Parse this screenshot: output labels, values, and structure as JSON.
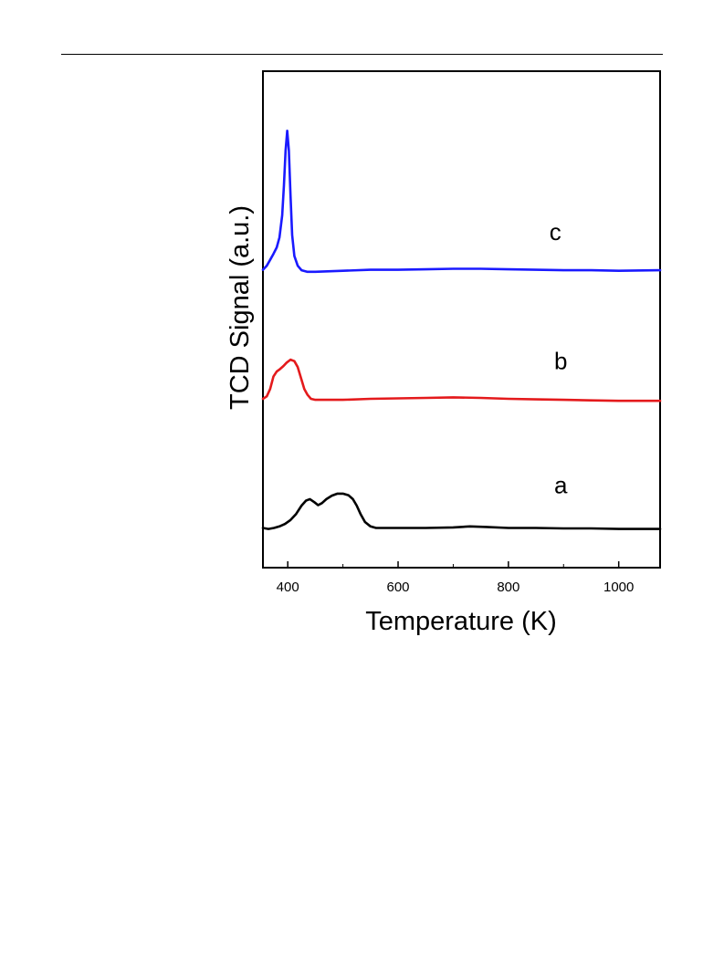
{
  "chart_data": {
    "type": "line",
    "title": "",
    "xlabel": "Temperature (K)",
    "ylabel": "TCD Signal (a.u.)",
    "xlim": [
      355,
      1075
    ],
    "ylim": [
      0,
      100
    ],
    "x_ticks": [
      400,
      600,
      800,
      1000
    ],
    "y_ticks": [],
    "grid": false,
    "legend": "none",
    "series": [
      {
        "name": "a",
        "color": "#000000",
        "points": [
          [
            355,
            8.0
          ],
          [
            365,
            7.8
          ],
          [
            375,
            8.0
          ],
          [
            385,
            8.3
          ],
          [
            395,
            8.8
          ],
          [
            405,
            9.6
          ],
          [
            415,
            10.8
          ],
          [
            425,
            12.5
          ],
          [
            433,
            13.5
          ],
          [
            440,
            13.8
          ],
          [
            448,
            13.2
          ],
          [
            455,
            12.6
          ],
          [
            462,
            13.0
          ],
          [
            470,
            13.8
          ],
          [
            480,
            14.5
          ],
          [
            490,
            14.9
          ],
          [
            500,
            14.9
          ],
          [
            510,
            14.6
          ],
          [
            518,
            13.8
          ],
          [
            525,
            12.5
          ],
          [
            532,
            10.8
          ],
          [
            540,
            9.2
          ],
          [
            550,
            8.3
          ],
          [
            560,
            8.0
          ],
          [
            600,
            8.0
          ],
          [
            650,
            8.0
          ],
          [
            700,
            8.1
          ],
          [
            730,
            8.3
          ],
          [
            760,
            8.2
          ],
          [
            800,
            8.0
          ],
          [
            850,
            8.0
          ],
          [
            900,
            7.9
          ],
          [
            950,
            7.9
          ],
          [
            1000,
            7.8
          ],
          [
            1075,
            7.8
          ]
        ]
      },
      {
        "name": "b",
        "color": "#e41a1c",
        "points": [
          [
            355,
            34.0
          ],
          [
            362,
            34.5
          ],
          [
            368,
            36.0
          ],
          [
            374,
            38.5
          ],
          [
            380,
            39.5
          ],
          [
            386,
            40.0
          ],
          [
            392,
            40.6
          ],
          [
            398,
            41.3
          ],
          [
            405,
            41.9
          ],
          [
            412,
            41.6
          ],
          [
            418,
            40.4
          ],
          [
            424,
            38.2
          ],
          [
            430,
            36.0
          ],
          [
            436,
            34.8
          ],
          [
            442,
            34.0
          ],
          [
            450,
            33.8
          ],
          [
            500,
            33.8
          ],
          [
            550,
            34.0
          ],
          [
            600,
            34.1
          ],
          [
            650,
            34.2
          ],
          [
            700,
            34.3
          ],
          [
            750,
            34.2
          ],
          [
            800,
            34.0
          ],
          [
            850,
            33.9
          ],
          [
            900,
            33.8
          ],
          [
            950,
            33.7
          ],
          [
            1000,
            33.6
          ],
          [
            1075,
            33.6
          ]
        ]
      },
      {
        "name": "c",
        "color": "#1a1aff",
        "points": [
          [
            355,
            60.0
          ],
          [
            362,
            60.8
          ],
          [
            368,
            62.0
          ],
          [
            374,
            63.2
          ],
          [
            380,
            64.5
          ],
          [
            385,
            66.5
          ],
          [
            390,
            71.0
          ],
          [
            393,
            77.0
          ],
          [
            396,
            84.0
          ],
          [
            399,
            88.0
          ],
          [
            402,
            84.0
          ],
          [
            405,
            75.0
          ],
          [
            408,
            67.0
          ],
          [
            412,
            62.8
          ],
          [
            418,
            60.8
          ],
          [
            425,
            59.9
          ],
          [
            435,
            59.6
          ],
          [
            450,
            59.6
          ],
          [
            500,
            59.8
          ],
          [
            550,
            60.0
          ],
          [
            600,
            60.0
          ],
          [
            650,
            60.1
          ],
          [
            700,
            60.2
          ],
          [
            750,
            60.2
          ],
          [
            800,
            60.1
          ],
          [
            850,
            60.0
          ],
          [
            900,
            59.9
          ],
          [
            950,
            59.9
          ],
          [
            1000,
            59.8
          ],
          [
            1075,
            59.9
          ]
        ]
      }
    ],
    "annotations": [
      {
        "text": "c",
        "x": 885,
        "y": 66
      },
      {
        "text": "b",
        "x": 895,
        "y": 40
      },
      {
        "text": "a",
        "x": 895,
        "y": 15
      }
    ]
  }
}
